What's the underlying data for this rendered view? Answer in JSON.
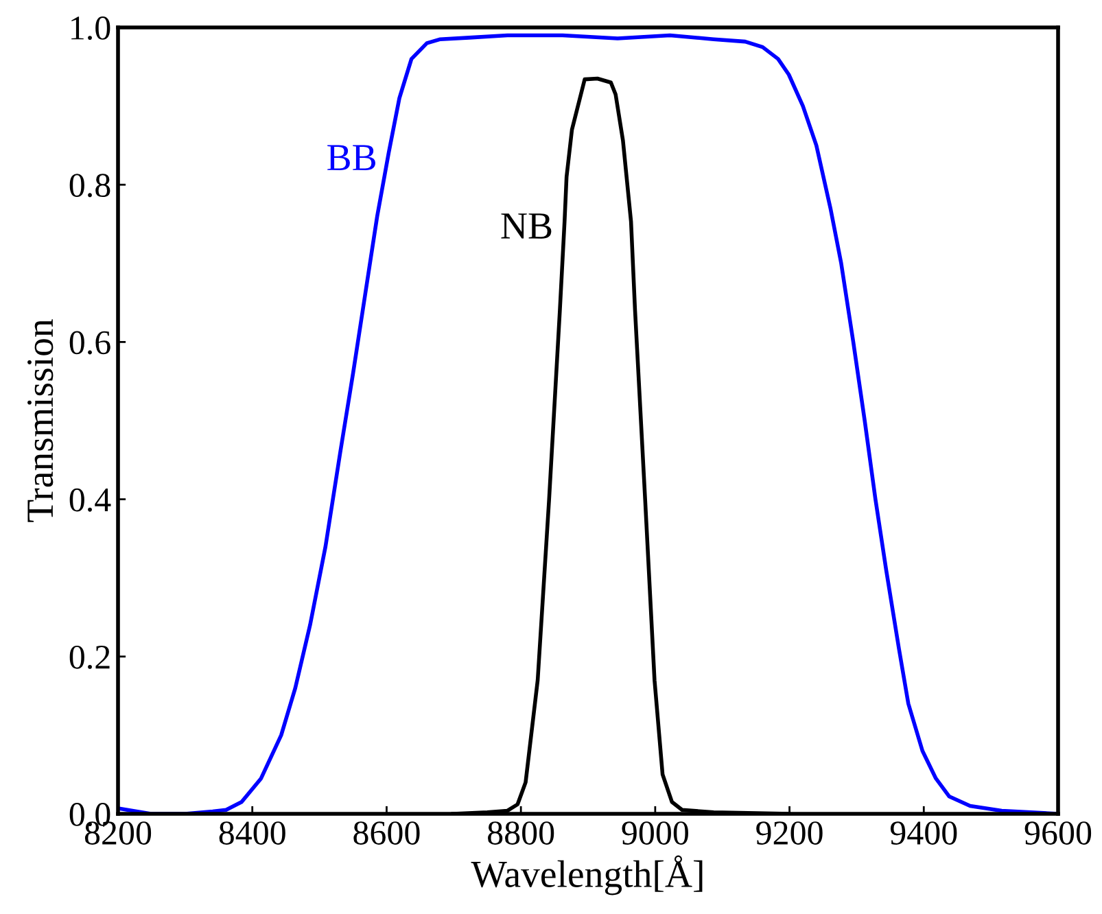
{
  "chart_data": {
    "type": "line",
    "xlabel": "Wavelength[Å]",
    "ylabel": "Transmission",
    "xlim": [
      8200,
      9600
    ],
    "ylim": [
      0,
      1.0
    ],
    "xticks": [
      8200,
      8400,
      8600,
      8800,
      9000,
      9200,
      9400,
      9600
    ],
    "yticks": [
      {
        "value": 0,
        "label": "0.0"
      },
      0.2,
      0.4,
      0.6,
      0.8,
      {
        "value": 1,
        "label": "1.0"
      }
    ],
    "grid": false,
    "legend": false,
    "marker": "none",
    "line_style": "solid",
    "series": [
      {
        "name": "BB",
        "color": "#0000ff",
        "x": [
          8200,
          8249,
          8300,
          8341,
          8361,
          8384,
          8413,
          8443,
          8464,
          8486,
          8509,
          8531,
          8550,
          8568,
          8586,
          8603,
          8619,
          8637,
          8660,
          8680,
          8723,
          8780,
          8862,
          8944,
          9022,
          9087,
          9134,
          9160,
          9183,
          9199,
          9220,
          9240,
          9261,
          9277,
          9295,
          9312,
          9328,
          9344,
          9363,
          9377,
          9398,
          9418,
          9438,
          9469,
          9516,
          9600
        ],
        "values": [
          0.007,
          0.0,
          0.0,
          0.003,
          0.005,
          0.015,
          0.045,
          0.1,
          0.16,
          0.24,
          0.34,
          0.46,
          0.56,
          0.66,
          0.76,
          0.84,
          0.91,
          0.96,
          0.98,
          0.985,
          0.987,
          0.99,
          0.99,
          0.986,
          0.99,
          0.985,
          0.982,
          0.975,
          0.96,
          0.94,
          0.9,
          0.85,
          0.77,
          0.7,
          0.6,
          0.5,
          0.4,
          0.31,
          0.21,
          0.14,
          0.08,
          0.045,
          0.022,
          0.01,
          0.004,
          0.0
        ]
      },
      {
        "name": "NB",
        "color": "#000000",
        "x": [
          8699,
          8750,
          8780,
          8795,
          8807,
          8825,
          8842,
          8858,
          8865,
          8868,
          8876,
          8895,
          8914,
          8934,
          8941,
          8952,
          8964,
          8970,
          8985,
          8999,
          9011,
          9025,
          9040,
          9087,
          9199
        ],
        "values": [
          0.0,
          0.002,
          0.004,
          0.012,
          0.04,
          0.17,
          0.4,
          0.64,
          0.753,
          0.81,
          0.87,
          0.934,
          0.935,
          0.93,
          0.915,
          0.856,
          0.753,
          0.64,
          0.4,
          0.17,
          0.05,
          0.015,
          0.005,
          0.002,
          0.0
        ]
      }
    ]
  }
}
